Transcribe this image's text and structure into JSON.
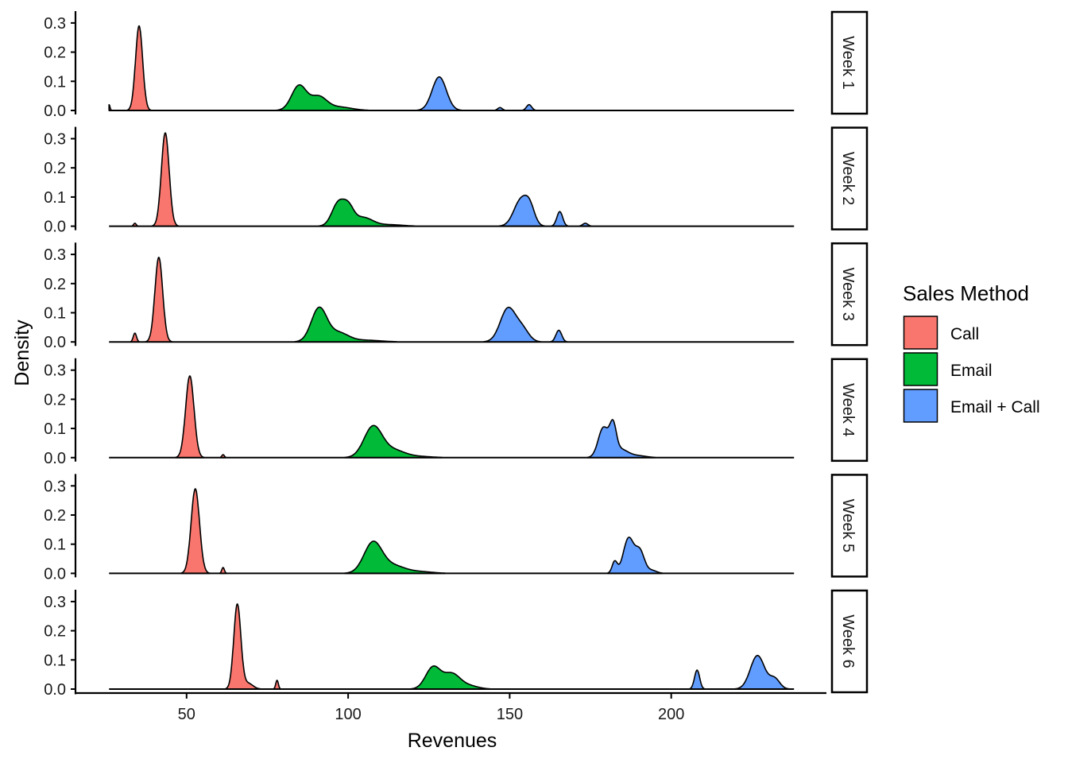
{
  "chart_data": {
    "type": "area",
    "subtype": "faceted density",
    "xlabel": "Revenues",
    "ylabel": "Density",
    "xlim": [
      20,
      243
    ],
    "ylim": [
      0,
      0.34
    ],
    "xticks": [
      50,
      100,
      150,
      200
    ],
    "xtick_labels": [
      "50",
      "100",
      "150",
      "200"
    ],
    "yticks": [
      0.0,
      0.1,
      0.2,
      0.3
    ],
    "ytick_labels": [
      "0.0",
      "0.1",
      "0.2",
      "0.3"
    ],
    "grid": false,
    "legend": {
      "title": "Sales Method",
      "placement": "right",
      "entries": [
        {
          "label": "Call",
          "color": "#F8766D"
        },
        {
          "label": "Email",
          "color": "#00BA38"
        },
        {
          "label": "Email + Call",
          "color": "#619CFF"
        }
      ]
    },
    "data_range": [
      26,
      238
    ],
    "note": "Each density approximated as a sum of components [center, sd, height].",
    "facets": [
      {
        "label": "Week 1",
        "series": [
          {
            "name": "Call",
            "components": [
              [
                35.3,
                1.1,
                0.29
              ],
              [
                26,
                0.3,
                0.02
              ]
            ]
          },
          {
            "name": "Email",
            "components": [
              [
                84.8,
                2.3,
                0.085
              ],
              [
                90.8,
                2.5,
                0.045
              ],
              [
                97,
                4,
                0.012
              ]
            ]
          },
          {
            "name": "Email + Call",
            "components": [
              [
                128.2,
                2.2,
                0.115
              ],
              [
                147,
                0.7,
                0.01
              ],
              [
                156,
                0.8,
                0.02
              ]
            ]
          }
        ]
      },
      {
        "label": "Week 2",
        "series": [
          {
            "name": "Call",
            "components": [
              [
                43.4,
                1.2,
                0.32
              ],
              [
                34,
                0.4,
                0.01
              ]
            ]
          },
          {
            "name": "Email",
            "components": [
              [
                97,
                2.0,
                0.08
              ],
              [
                100.2,
                1.6,
                0.05
              ],
              [
                104.5,
                3.0,
                0.03
              ],
              [
                113,
                4,
                0.005
              ]
            ]
          },
          {
            "name": "Email + Call",
            "components": [
              [
                153.5,
                2.2,
                0.09
              ],
              [
                156.3,
                1.5,
                0.05
              ],
              [
                165.5,
                0.9,
                0.05
              ],
              [
                173.4,
                0.8,
                0.01
              ]
            ]
          }
        ]
      },
      {
        "label": "Week 3",
        "series": [
          {
            "name": "Call",
            "components": [
              [
                41.4,
                1.2,
                0.29
              ],
              [
                34,
                0.5,
                0.03
              ]
            ]
          },
          {
            "name": "Email",
            "components": [
              [
                91,
                2.4,
                0.115
              ],
              [
                97,
                3.0,
                0.03
              ],
              [
                105,
                5,
                0.006
              ]
            ]
          },
          {
            "name": "Email + Call",
            "components": [
              [
                149.5,
                2.4,
                0.115
              ],
              [
                154,
                2.0,
                0.04
              ],
              [
                165.2,
                0.9,
                0.04
              ]
            ]
          }
        ]
      },
      {
        "label": "Week 4",
        "series": [
          {
            "name": "Call",
            "components": [
              [
                51,
                1.3,
                0.28
              ],
              [
                61.3,
                0.4,
                0.01
              ]
            ]
          },
          {
            "name": "Email",
            "components": [
              [
                107.7,
                2.8,
                0.105
              ],
              [
                114,
                3.5,
                0.025
              ],
              [
                122,
                4,
                0.004
              ]
            ]
          },
          {
            "name": "Email + Call",
            "components": [
              [
                179,
                1.6,
                0.1
              ],
              [
                182,
                1.0,
                0.09
              ],
              [
                184,
                2.5,
                0.03
              ],
              [
                190,
                2.5,
                0.006
              ]
            ]
          }
        ]
      },
      {
        "label": "Week 5",
        "series": [
          {
            "name": "Call",
            "components": [
              [
                52.7,
                1.3,
                0.29
              ],
              [
                61.3,
                0.4,
                0.02
              ]
            ]
          },
          {
            "name": "Email",
            "components": [
              [
                107.7,
                2.8,
                0.105
              ],
              [
                114,
                3.5,
                0.025
              ],
              [
                122,
                4,
                0.006
              ]
            ]
          },
          {
            "name": "Email + Call",
            "components": [
              [
                182.5,
                0.8,
                0.04
              ],
              [
                186.8,
                1.6,
                0.12
              ],
              [
                190.3,
                1.4,
                0.075
              ],
              [
                194,
                1.5,
                0.01
              ]
            ]
          }
        ]
      },
      {
        "label": "Week 6",
        "series": [
          {
            "name": "Call",
            "components": [
              [
                65.7,
                1.1,
                0.29
              ],
              [
                69,
                1.5,
                0.02
              ],
              [
                78,
                0.4,
                0.03
              ]
            ]
          },
          {
            "name": "Email",
            "components": [
              [
                126.3,
                2.3,
                0.075
              ],
              [
                132,
                2.5,
                0.05
              ],
              [
                137,
                3,
                0.012
              ]
            ]
          },
          {
            "name": "Email + Call",
            "components": [
              [
                208,
                0.8,
                0.065
              ],
              [
                226.7,
                2.2,
                0.115
              ],
              [
                232,
                1.6,
                0.035
              ]
            ]
          }
        ]
      }
    ]
  }
}
